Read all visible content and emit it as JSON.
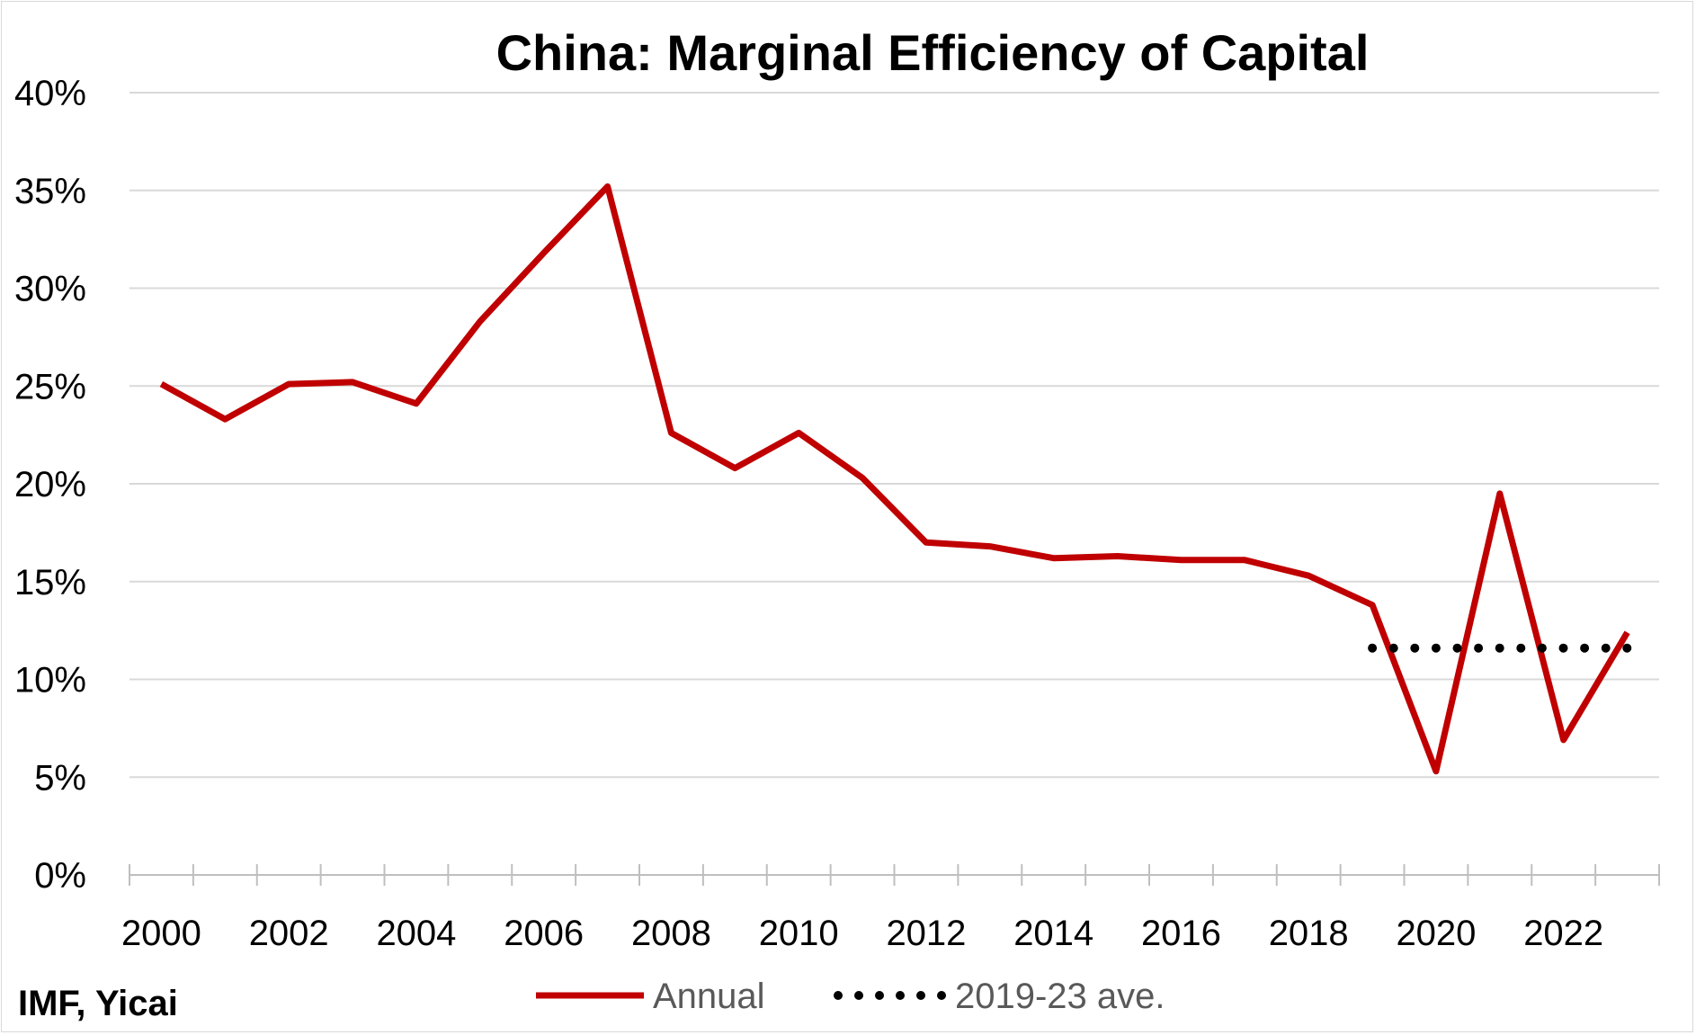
{
  "chart_data": {
    "type": "line",
    "title": "China: Marginal Efficiency of Capital",
    "source": "IMF, Yicai",
    "x": [
      2000,
      2001,
      2002,
      2003,
      2004,
      2005,
      2006,
      2007,
      2008,
      2009,
      2010,
      2011,
      2012,
      2013,
      2014,
      2015,
      2016,
      2017,
      2018,
      2019,
      2020,
      2021,
      2022,
      2023
    ],
    "x_tick_labels": [
      "2000",
      "2002",
      "2004",
      "2006",
      "2008",
      "2010",
      "2012",
      "2014",
      "2016",
      "2018",
      "2020",
      "2022"
    ],
    "y_tick_labels": [
      "0%",
      "5%",
      "10%",
      "15%",
      "20%",
      "25%",
      "30%",
      "35%",
      "40%"
    ],
    "ylim": [
      0,
      40
    ],
    "y_unit": "%",
    "grid": "horizontal",
    "legend_position": "bottom",
    "series": [
      {
        "name": "Annual",
        "style": "solid",
        "color": "#c00000",
        "values": [
          25.1,
          23.3,
          25.1,
          25.2,
          24.1,
          28.3,
          31.8,
          35.2,
          22.6,
          20.8,
          22.6,
          20.3,
          17.0,
          16.8,
          16.2,
          16.3,
          16.1,
          16.1,
          15.3,
          13.8,
          5.3,
          19.5,
          6.9,
          12.4
        ]
      },
      {
        "name": "2019-23 ave.",
        "style": "dotted",
        "color": "#000000",
        "x": [
          2019,
          2020,
          2021,
          2022,
          2023
        ],
        "values": [
          11.6,
          11.6,
          11.6,
          11.6,
          11.6
        ]
      }
    ]
  }
}
